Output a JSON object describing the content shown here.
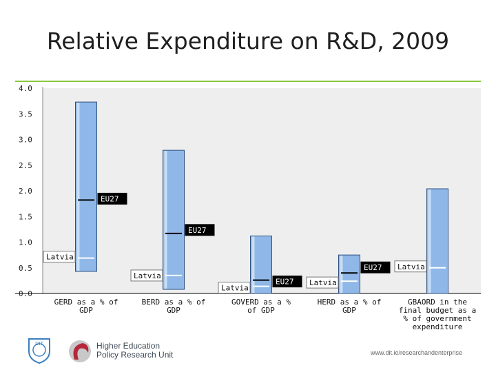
{
  "slide": {
    "title": "Relative Expenditure on R&D, 2009",
    "footer_url": "www.dit.ie/researchandenterprise",
    "hepru_line1": "Higher Education",
    "hepru_line2": "Policy Research Unit",
    "dit_logo_text": "DIT"
  },
  "colors": {
    "accent_rule": "#8cc63f",
    "bar_fill": "#8fb8e8",
    "bar_edge": "#2f4f7f",
    "plot_bg": "#eeeeee",
    "eu_marker": "#000000",
    "latvia_marker": "#ffffff"
  },
  "chart_data": {
    "type": "bar",
    "subtype": "floating-range",
    "ylim": [
      0,
      4.0
    ],
    "yticks": [
      "0.0",
      "0.5",
      "1.0",
      "1.5",
      "2.0",
      "2.5",
      "3.0",
      "3.5",
      "4.0"
    ],
    "grid": false,
    "categories": [
      [
        "GERD as a % of",
        "GDP"
      ],
      [
        "BERD as a % of",
        "GDP"
      ],
      [
        "GOVERD as a %",
        "of GDP"
      ],
      [
        "HERD as a % of",
        "GDP"
      ],
      [
        "GBAORD in the",
        "final budget as a",
        "% of government",
        "expenditure"
      ]
    ],
    "series": [
      {
        "name": "range",
        "low": [
          0.43,
          0.08,
          0.0,
          0.0,
          0.0
        ],
        "high": [
          3.73,
          2.79,
          1.12,
          0.75,
          2.04
        ]
      },
      {
        "name": "EU27",
        "values": [
          1.82,
          1.17,
          0.26,
          0.4,
          null
        ]
      },
      {
        "name": "Latvia",
        "values": [
          0.69,
          0.35,
          0.14,
          0.24,
          0.5
        ]
      }
    ],
    "labels": {
      "eu": "EU27",
      "latvia": "Latvia"
    }
  }
}
